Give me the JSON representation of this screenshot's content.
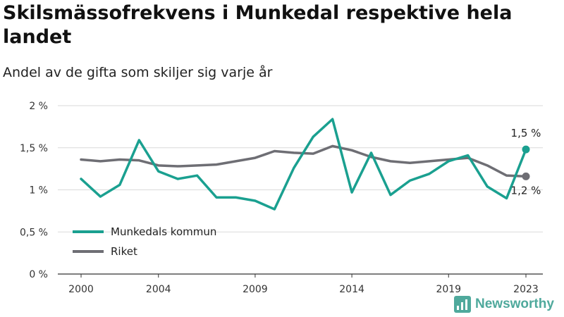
{
  "header": {
    "title": "Skilsmässofrekvens i Munkedal respektive hela landet",
    "subtitle": "Andel av de gifta som skiljer sig varje år"
  },
  "brand": {
    "name": "Newsworthy",
    "icon": "newsworthy-logo-icon",
    "color": "#4fa99c"
  },
  "chart_data": {
    "type": "line",
    "title": "Skilsmässofrekvens i Munkedal respektive hela landet",
    "subtitle": "Andel av de gifta som skiljer sig varje år",
    "x": [
      2000,
      2001,
      2002,
      2003,
      2004,
      2005,
      2006,
      2007,
      2008,
      2009,
      2010,
      2011,
      2012,
      2013,
      2014,
      2015,
      2016,
      2017,
      2018,
      2019,
      2020,
      2021,
      2022,
      2023
    ],
    "x_ticks": [
      2000,
      2004,
      2009,
      2014,
      2019,
      2023
    ],
    "y_ticks": [
      0,
      0.5,
      1,
      1.5,
      2
    ],
    "y_tick_labels": [
      "0 %",
      "0,5 %",
      "1 %",
      "1,5 %",
      "2 %"
    ],
    "ylim": [
      0,
      2
    ],
    "grid": "horizontal",
    "legend_position": "bottom-left",
    "series": [
      {
        "name": "Munkedals kommun",
        "color": "#1aa090",
        "values": [
          1.13,
          0.92,
          1.06,
          1.59,
          1.22,
          1.13,
          1.17,
          0.91,
          0.91,
          0.87,
          0.77,
          1.26,
          1.63,
          1.84,
          0.97,
          1.44,
          0.94,
          1.11,
          1.19,
          1.34,
          1.41,
          1.04,
          0.9,
          1.48
        ],
        "end_label": "1,5 %"
      },
      {
        "name": "Riket",
        "color": "#6e6e74",
        "values": [
          1.36,
          1.34,
          1.36,
          1.35,
          1.29,
          1.28,
          1.29,
          1.3,
          1.34,
          1.38,
          1.46,
          1.44,
          1.43,
          1.52,
          1.47,
          1.39,
          1.34,
          1.32,
          1.34,
          1.36,
          1.38,
          1.29,
          1.17,
          1.16
        ],
        "end_label": "1,2 %"
      }
    ]
  }
}
